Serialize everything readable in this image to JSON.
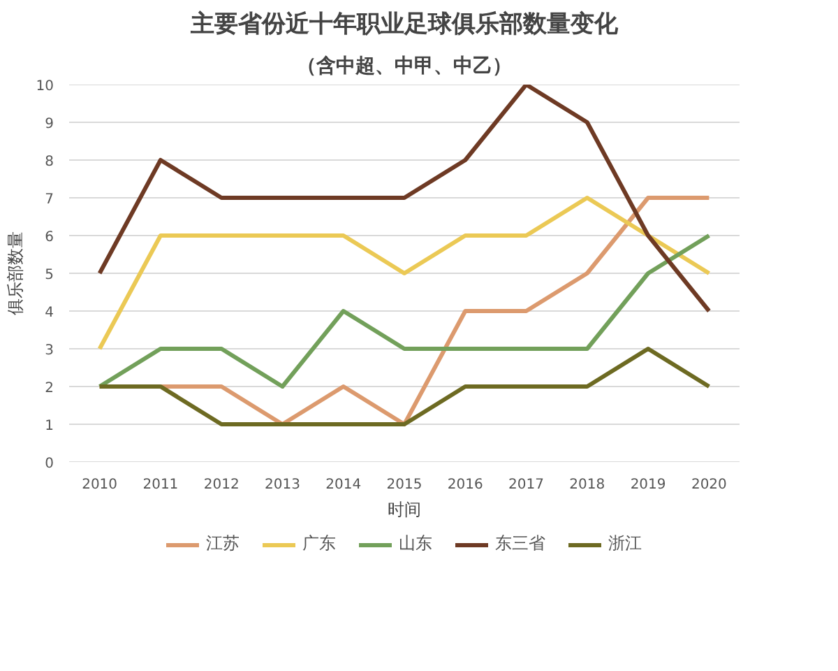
{
  "chart_data": {
    "type": "line",
    "title": "主要省份近十年职业足球俱乐部数量变化",
    "subtitle": "（含中超、中甲、中乙）",
    "xlabel": "时间",
    "ylabel": "俱乐部数量",
    "x": [
      2010,
      2011,
      2012,
      2013,
      2014,
      2015,
      2016,
      2017,
      2018,
      2019,
      2020
    ],
    "xlim": [
      2009.5,
      2020.5
    ],
    "xticks": [
      2010,
      2011,
      2012,
      2013,
      2014,
      2015,
      2016,
      2017,
      2018,
      2019,
      2020
    ],
    "ylim": [
      0,
      10
    ],
    "yticks": [
      0,
      1,
      2,
      3,
      4,
      5,
      6,
      7,
      8,
      9,
      10
    ],
    "series": [
      {
        "name": "江苏",
        "color": "#dc9a6e",
        "values": [
          2,
          2,
          2,
          1,
          2,
          1,
          4,
          4,
          5,
          7,
          7
        ]
      },
      {
        "name": "广东",
        "color": "#ebc955",
        "values": [
          3,
          6,
          6,
          6,
          6,
          5,
          6,
          6,
          7,
          6,
          5
        ]
      },
      {
        "name": "山东",
        "color": "#72a05a",
        "values": [
          2,
          3,
          3,
          2,
          4,
          3,
          3,
          3,
          3,
          5,
          6
        ]
      },
      {
        "name": "东三省",
        "color": "#6e3a24",
        "values": [
          5,
          8,
          7,
          7,
          7,
          7,
          8,
          10,
          9,
          6,
          4
        ]
      },
      {
        "name": "浙江",
        "color": "#6d6a22",
        "values": [
          2,
          2,
          1,
          1,
          1,
          1,
          2,
          2,
          2,
          3,
          2
        ]
      }
    ],
    "grid": "y",
    "legend": "bottom",
    "line_style": "solid"
  }
}
